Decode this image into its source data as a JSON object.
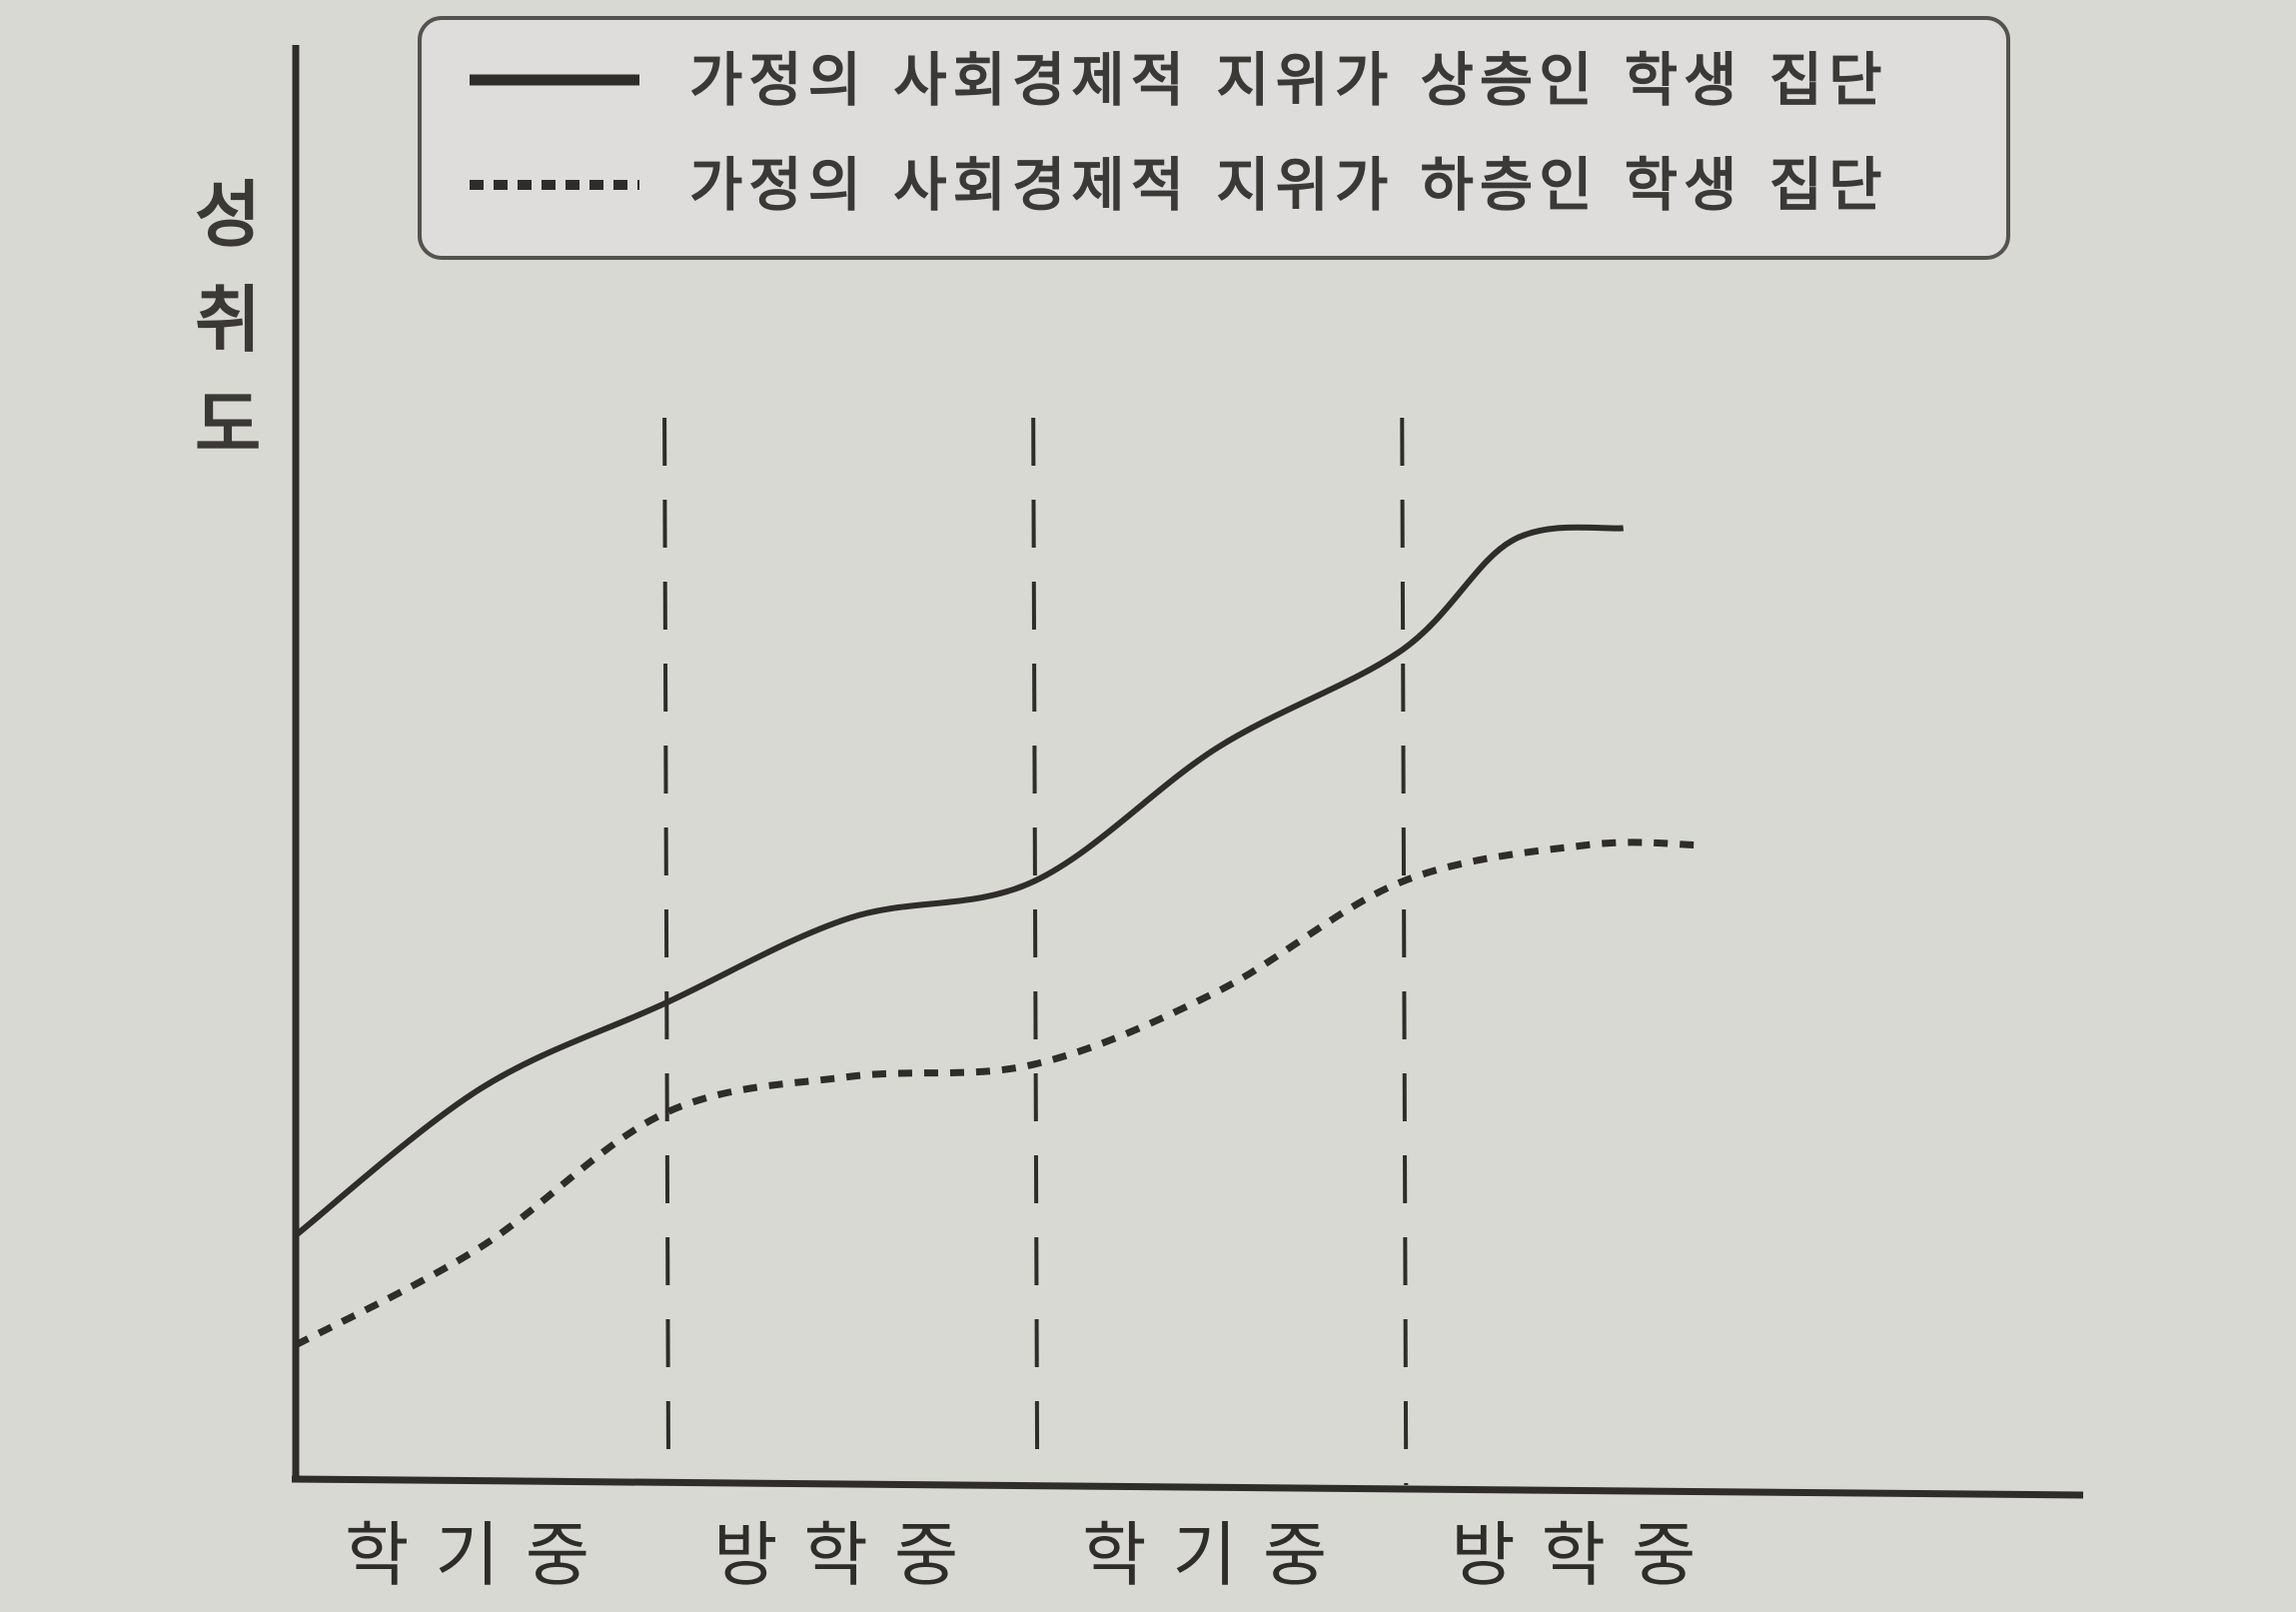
{
  "chart_data": {
    "type": "line",
    "ylabel": "성취도",
    "xlabel": "",
    "categories": [
      "학기중",
      "방학중",
      "학기중",
      "방학중"
    ],
    "x_ticks": [
      0,
      1,
      2,
      3,
      4
    ],
    "xlim": [
      0,
      4.4
    ],
    "ylim": [
      0,
      10
    ],
    "grid": false,
    "legend_position": "top",
    "series": [
      {
        "name": "가정의 사회경제적 지위가 상층인 학생 집단",
        "style": "solid",
        "x": [
          0,
          0.5,
          1,
          1.5,
          2,
          2.5,
          3,
          3.3,
          3.6
        ],
        "y": [
          2.0,
          3.2,
          3.9,
          4.6,
          4.9,
          6.0,
          6.8,
          7.7,
          7.8
        ]
      },
      {
        "name": "가정의 사회경제적 지위가 하층인 학생 집단",
        "style": "dashed",
        "x": [
          0,
          0.5,
          1,
          1.5,
          2,
          2.5,
          3,
          3.5,
          3.8
        ],
        "y": [
          1.1,
          1.9,
          3.0,
          3.3,
          3.4,
          4.0,
          4.9,
          5.2,
          5.2
        ]
      }
    ],
    "dividers": [
      1,
      2,
      3
    ]
  }
}
